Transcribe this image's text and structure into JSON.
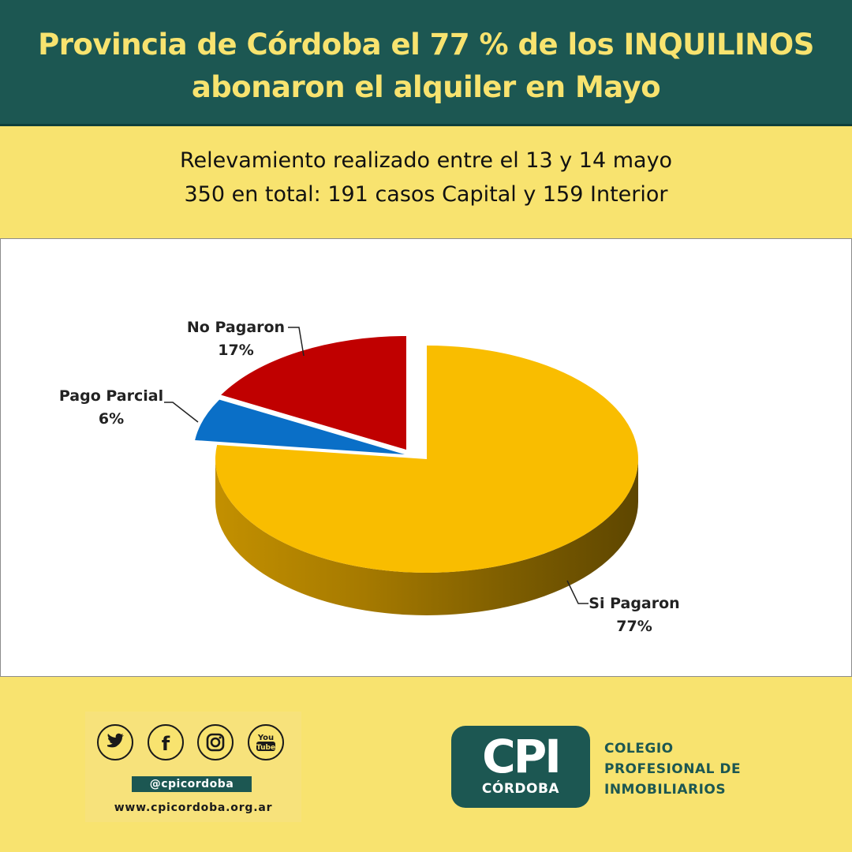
{
  "header": {
    "title_line1": "Provincia de Córdoba el 77 % de los INQUILINOS",
    "title_line2": "abonaron el alquiler en Mayo"
  },
  "subtitle": {
    "line1": "Relevamiento realizado entre el 13 y 14 mayo",
    "line2": "350 en total: 191 casos Capital y 159 Interior"
  },
  "chart_data": {
    "type": "pie",
    "style": "3d-exploded",
    "slices": [
      {
        "label": "Si Pagaron",
        "value": 77,
        "value_label": "77%",
        "color": "#f9bd00"
      },
      {
        "label": "Pago Parcial",
        "value": 6,
        "value_label": "6%",
        "color": "#0a6fc7"
      },
      {
        "label": "No Pagaron",
        "value": 17,
        "value_label": "17%",
        "color": "#c00000"
      }
    ],
    "legend": "none",
    "grid": false
  },
  "footer": {
    "social_icons": [
      "twitter-icon",
      "facebook-icon",
      "instagram-icon",
      "youtube-icon"
    ],
    "youtube_text_1": "You",
    "youtube_text_2": "Tube",
    "facebook_text": "f",
    "handle": "@cpicordoba",
    "website": "www.cpicordoba.org.ar",
    "logo": {
      "mark": "CPI",
      "city": "CÓRDOBA",
      "name_line1": "COLEGIO",
      "name_line2": "PROFESIONAL DE",
      "name_line3": "INMOBILIARIOS"
    }
  },
  "colors": {
    "brand_green": "#1c5752",
    "brand_yellow": "#f8e36f"
  }
}
